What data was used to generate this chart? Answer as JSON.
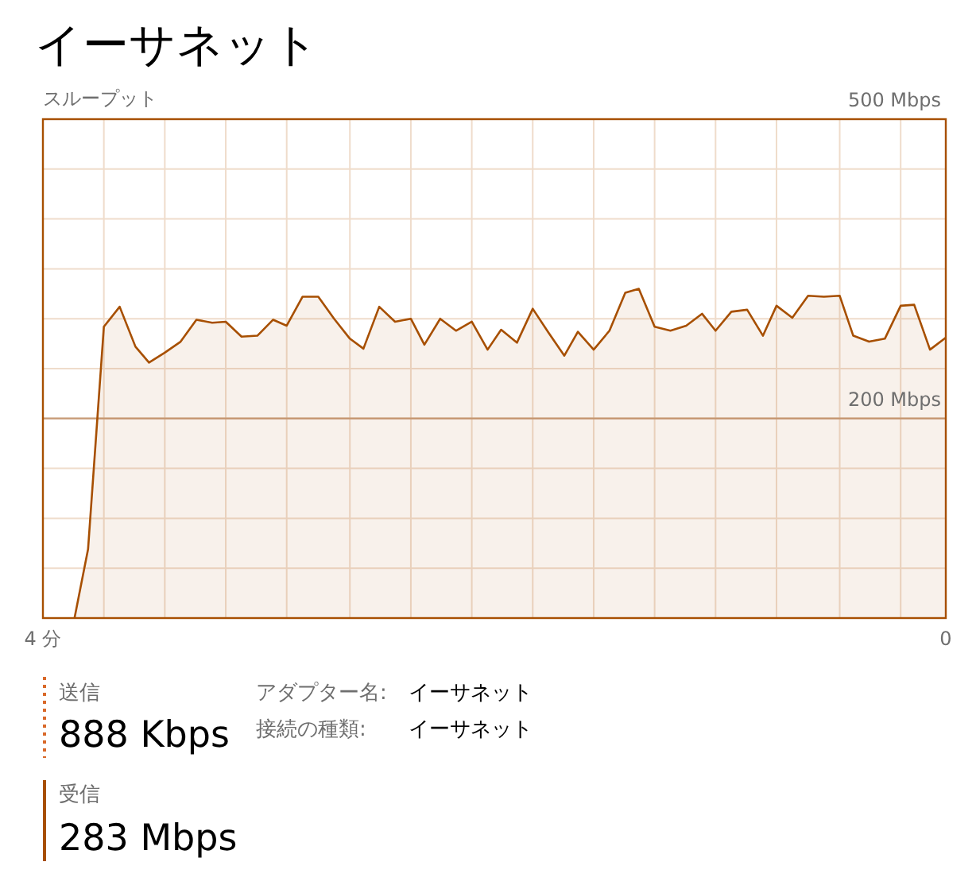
{
  "chart_data": {
    "type": "area",
    "title": "イーサネット",
    "ylabel": "スループット",
    "color": "#a74f01",
    "x": [
      3.86,
      3.8,
      3.73,
      3.66,
      3.59,
      3.53,
      3.46,
      3.39,
      3.32,
      3.25,
      3.19,
      3.12,
      3.05,
      2.98,
      2.92,
      2.85,
      2.78,
      2.71,
      2.64,
      2.58,
      2.51,
      2.44,
      2.37,
      2.31,
      2.24,
      2.17,
      2.1,
      2.03,
      1.97,
      1.9,
      1.83,
      1.76,
      1.69,
      1.63,
      1.56,
      1.49,
      1.42,
      1.36,
      1.29,
      1.22,
      1.15,
      1.08,
      1.02,
      0.95,
      0.88,
      0.81,
      0.75,
      0.68,
      0.61,
      0.54,
      0.47,
      0.41,
      0.34,
      0.27,
      0.2,
      0.14,
      0.07,
      0
    ],
    "values": [
      0,
      69,
      292,
      312,
      272,
      256,
      266,
      277,
      299,
      296,
      297,
      282,
      283,
      299,
      293,
      322,
      322,
      300,
      280,
      270,
      312,
      297,
      300,
      274,
      300,
      288,
      297,
      269,
      289,
      276,
      310,
      286,
      263,
      287,
      269,
      288,
      326,
      330,
      292,
      288,
      293,
      305,
      288,
      307,
      309,
      283,
      313,
      301,
      323,
      322,
      323,
      283,
      277,
      280,
      313,
      314,
      269,
      281
    ],
    "xlim": [
      4,
      0
    ],
    "xticks": [
      {
        "value": 4,
        "label": "4 分"
      },
      {
        "value": 3.73,
        "label": null
      },
      {
        "value": 3.46,
        "label": null
      },
      {
        "value": 3.19,
        "label": null
      },
      {
        "value": 2.92,
        "label": null
      },
      {
        "value": 2.64,
        "label": null
      },
      {
        "value": 2.37,
        "label": null
      },
      {
        "value": 2.1,
        "label": null
      },
      {
        "value": 1.83,
        "label": null
      },
      {
        "value": 1.56,
        "label": null
      },
      {
        "value": 1.29,
        "label": null
      },
      {
        "value": 1.02,
        "label": null
      },
      {
        "value": 0.75,
        "label": null
      },
      {
        "value": 0.47,
        "label": null
      },
      {
        "value": 0.2,
        "label": null
      },
      0
    ],
    "ylim": [
      0,
      500
    ],
    "yticks": [
      {
        "value": 0,
        "label": null
      },
      {
        "value": 50,
        "label": null
      },
      {
        "value": 100,
        "label": null
      },
      {
        "value": 150,
        "label": null
      },
      {
        "value": 200,
        "label": "200 Mbps"
      },
      {
        "value": 250,
        "label": null
      },
      {
        "value": 300,
        "label": null
      },
      {
        "value": 350,
        "label": null
      },
      {
        "value": 400,
        "label": null
      },
      {
        "value": 450,
        "label": null
      },
      {
        "value": 500,
        "label": "500 Mbps"
      }
    ],
    "grid": true,
    "ref_lines": [
      {
        "axis": "y",
        "value": 200,
        "color": "#caa07e"
      }
    ],
    "annotations": [
      "送信",
      "888 Kbps",
      "受信",
      "283 Mbps",
      "アダプター名:",
      "イーサネット",
      "接続の種類:",
      "イーサネット"
    ]
  }
}
